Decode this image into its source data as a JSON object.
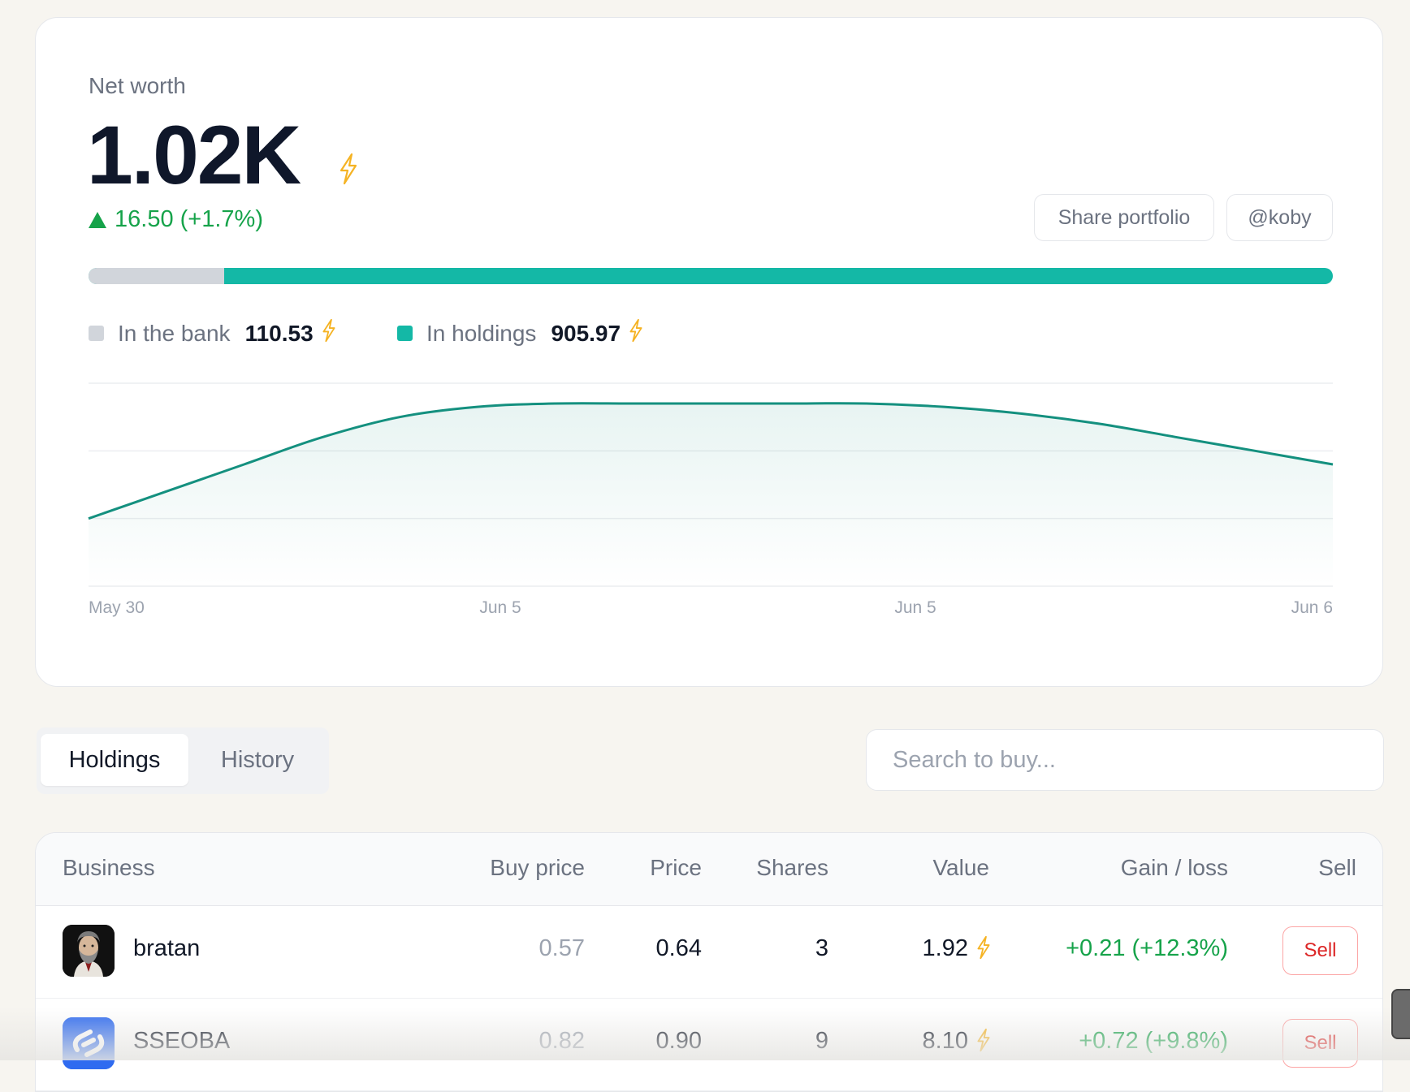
{
  "net_worth": {
    "label": "Net worth",
    "value": "1.02K",
    "change": "16.50 (+1.7%)",
    "change_direction": "up"
  },
  "actions": {
    "share_label": "Share portfolio",
    "user_label": "@koby"
  },
  "allocation": {
    "bank_label": "In the bank",
    "bank_value": "110.53",
    "holdings_label": "In holdings",
    "holdings_value": "905.97",
    "bank_fraction": 0.109,
    "bank_color": "#d1d5db",
    "holdings_color": "#14b8a6"
  },
  "chart_data": {
    "type": "area",
    "x_ticks": [
      "May 30",
      "Jun 5",
      "Jun 5",
      "Jun 6"
    ],
    "y": [
      1000,
      1008,
      1016,
      1024,
      1030,
      1033,
      1034,
      1034,
      1034,
      1034,
      1034,
      1033,
      1031,
      1028,
      1024,
      1020,
      1016
    ],
    "ylim": [
      980,
      1040
    ],
    "grid": true,
    "line_color": "#14907f"
  },
  "tabs": [
    {
      "label": "Holdings",
      "active": true
    },
    {
      "label": "History",
      "active": false
    }
  ],
  "search": {
    "placeholder": "Search to buy..."
  },
  "table": {
    "headers": [
      "Business",
      "Buy price",
      "Price",
      "Shares",
      "Value",
      "Gain / loss",
      "Sell"
    ],
    "rows": [
      {
        "business": "bratan",
        "avatar_icon": "bearded-man-avatar",
        "buy_price": "0.57",
        "price": "0.64",
        "shares": "3",
        "value": "1.92",
        "gain": "+0.21 (+12.3%)",
        "sell": "Sell"
      },
      {
        "business": "SSEOBA",
        "avatar_icon": "blue-s-logo",
        "buy_price": "0.82",
        "price": "0.90",
        "shares": "9",
        "value": "8.10",
        "gain": "+0.72 (+9.8%)",
        "sell": "Sell"
      }
    ]
  },
  "icons": {
    "currency": "lightning-bolt-icon",
    "bolt_color": "#f5b324"
  }
}
